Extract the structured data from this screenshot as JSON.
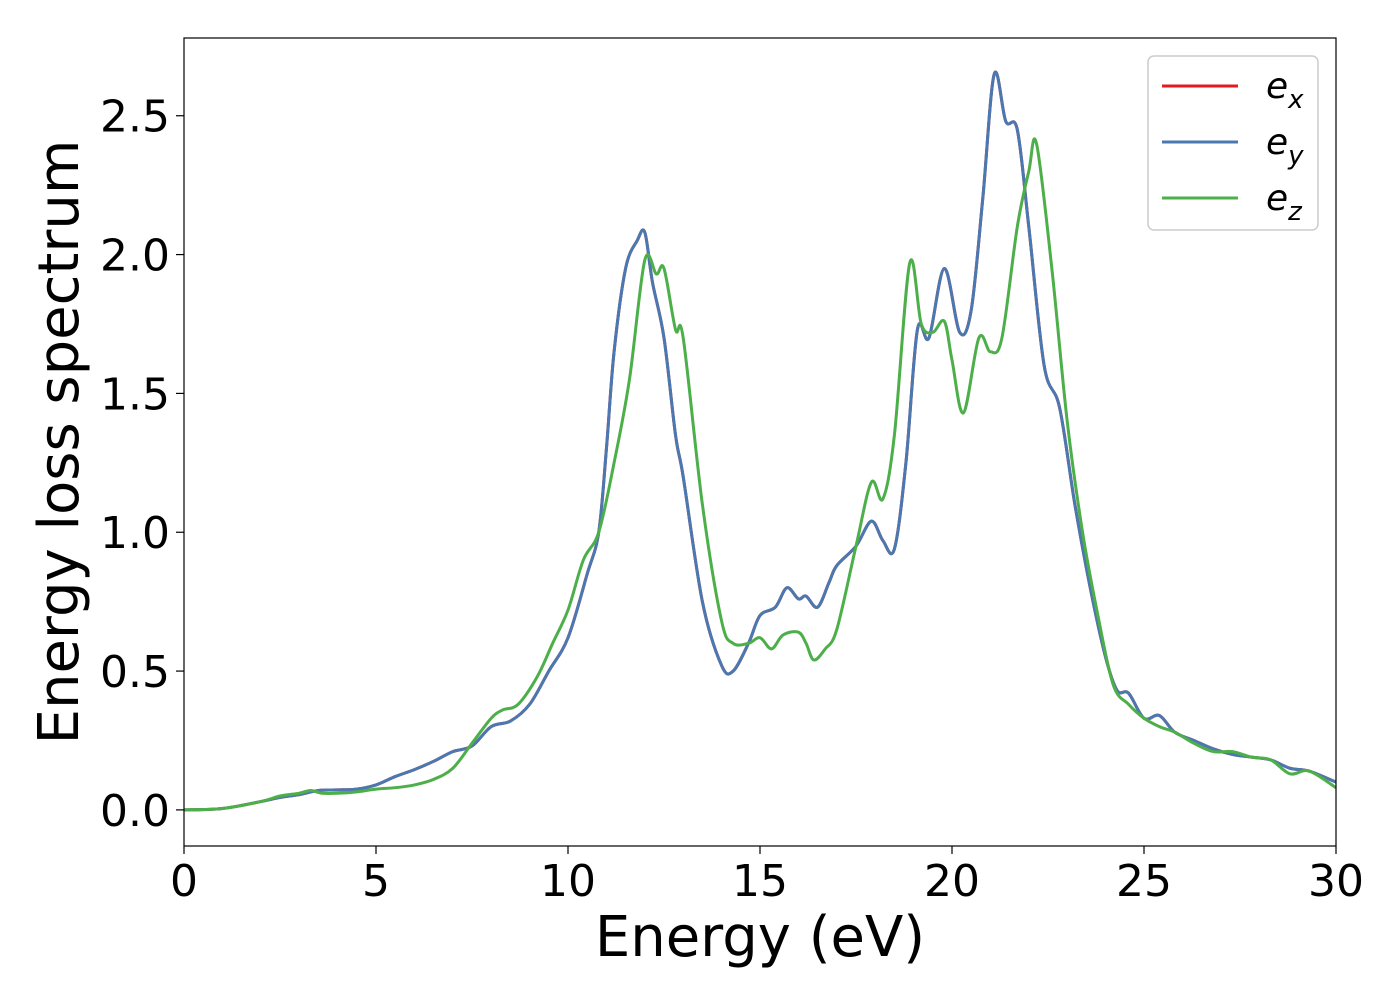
{
  "chart_data": {
    "type": "line",
    "xlabel": "Energy (eV)",
    "ylabel": "Energy loss spectrum",
    "xlim": [
      0,
      30
    ],
    "ylim": [
      -0.13,
      2.78
    ],
    "xticks": [
      0,
      5,
      10,
      15,
      20,
      25,
      30
    ],
    "yticks": [
      0.0,
      0.5,
      1.0,
      1.5,
      2.0,
      2.5
    ],
    "xtick_labels": [
      "0",
      "5",
      "10",
      "15",
      "20",
      "25",
      "30"
    ],
    "ytick_labels": [
      "0.0",
      "0.5",
      "1.0",
      "1.5",
      "2.0",
      "2.5"
    ],
    "grid": false,
    "legend": "top-right",
    "series": [
      {
        "name": "e",
        "subscript": "x",
        "color": "#e41a1c",
        "points": [
          [
            0,
            0
          ],
          [
            1,
            0.005
          ],
          [
            2,
            0.03
          ],
          [
            2.5,
            0.045
          ],
          [
            3,
            0.055
          ],
          [
            3.5,
            0.07
          ],
          [
            4,
            0.072
          ],
          [
            4.5,
            0.075
          ],
          [
            5,
            0.09
          ],
          [
            5.5,
            0.12
          ],
          [
            6,
            0.145
          ],
          [
            6.5,
            0.175
          ],
          [
            7,
            0.21
          ],
          [
            7.5,
            0.23
          ],
          [
            8,
            0.3
          ],
          [
            8.5,
            0.32
          ],
          [
            9,
            0.38
          ],
          [
            9.5,
            0.5
          ],
          [
            10,
            0.62
          ],
          [
            10.5,
            0.85
          ],
          [
            10.8,
            1.0
          ],
          [
            11,
            1.3
          ],
          [
            11.2,
            1.65
          ],
          [
            11.5,
            1.95
          ],
          [
            11.8,
            2.05
          ],
          [
            12,
            2.08
          ],
          [
            12.2,
            1.9
          ],
          [
            12.5,
            1.7
          ],
          [
            12.8,
            1.35
          ],
          [
            13,
            1.2
          ],
          [
            13.5,
            0.75
          ],
          [
            14,
            0.52
          ],
          [
            14.3,
            0.5
          ],
          [
            14.7,
            0.6
          ],
          [
            15,
            0.7
          ],
          [
            15.4,
            0.73
          ],
          [
            15.7,
            0.8
          ],
          [
            16,
            0.76
          ],
          [
            16.2,
            0.77
          ],
          [
            16.5,
            0.73
          ],
          [
            16.8,
            0.82
          ],
          [
            17,
            0.88
          ],
          [
            17.5,
            0.95
          ],
          [
            17.9,
            1.04
          ],
          [
            18.2,
            0.97
          ],
          [
            18.5,
            0.94
          ],
          [
            18.8,
            1.25
          ],
          [
            19.1,
            1.73
          ],
          [
            19.4,
            1.7
          ],
          [
            19.8,
            1.95
          ],
          [
            20.2,
            1.72
          ],
          [
            20.5,
            1.8
          ],
          [
            20.8,
            2.2
          ],
          [
            21.1,
            2.65
          ],
          [
            21.4,
            2.48
          ],
          [
            21.7,
            2.45
          ],
          [
            22,
            2.1
          ],
          [
            22.4,
            1.6
          ],
          [
            22.8,
            1.45
          ],
          [
            23.2,
            1.1
          ],
          [
            23.6,
            0.8
          ],
          [
            24,
            0.55
          ],
          [
            24.3,
            0.43
          ],
          [
            24.6,
            0.42
          ],
          [
            25,
            0.33
          ],
          [
            25.4,
            0.34
          ],
          [
            25.8,
            0.28
          ],
          [
            26.3,
            0.25
          ],
          [
            26.8,
            0.22
          ],
          [
            27.3,
            0.2
          ],
          [
            27.8,
            0.19
          ],
          [
            28.3,
            0.18
          ],
          [
            28.8,
            0.15
          ],
          [
            29.3,
            0.14
          ],
          [
            30,
            0.1
          ]
        ]
      },
      {
        "name": "e",
        "subscript": "y",
        "color": "#4a78b0",
        "points": [
          [
            0,
            0
          ],
          [
            1,
            0.005
          ],
          [
            2,
            0.03
          ],
          [
            2.5,
            0.045
          ],
          [
            3,
            0.055
          ],
          [
            3.5,
            0.07
          ],
          [
            4,
            0.072
          ],
          [
            4.5,
            0.075
          ],
          [
            5,
            0.09
          ],
          [
            5.5,
            0.12
          ],
          [
            6,
            0.145
          ],
          [
            6.5,
            0.175
          ],
          [
            7,
            0.21
          ],
          [
            7.5,
            0.23
          ],
          [
            8,
            0.3
          ],
          [
            8.5,
            0.32
          ],
          [
            9,
            0.38
          ],
          [
            9.5,
            0.5
          ],
          [
            10,
            0.62
          ],
          [
            10.5,
            0.85
          ],
          [
            10.8,
            1.0
          ],
          [
            11,
            1.3
          ],
          [
            11.2,
            1.65
          ],
          [
            11.5,
            1.95
          ],
          [
            11.8,
            2.05
          ],
          [
            12,
            2.08
          ],
          [
            12.2,
            1.9
          ],
          [
            12.5,
            1.7
          ],
          [
            12.8,
            1.35
          ],
          [
            13,
            1.2
          ],
          [
            13.5,
            0.75
          ],
          [
            14,
            0.52
          ],
          [
            14.3,
            0.5
          ],
          [
            14.7,
            0.6
          ],
          [
            15,
            0.7
          ],
          [
            15.4,
            0.73
          ],
          [
            15.7,
            0.8
          ],
          [
            16,
            0.76
          ],
          [
            16.2,
            0.77
          ],
          [
            16.5,
            0.73
          ],
          [
            16.8,
            0.82
          ],
          [
            17,
            0.88
          ],
          [
            17.5,
            0.95
          ],
          [
            17.9,
            1.04
          ],
          [
            18.2,
            0.97
          ],
          [
            18.5,
            0.94
          ],
          [
            18.8,
            1.25
          ],
          [
            19.1,
            1.73
          ],
          [
            19.4,
            1.7
          ],
          [
            19.8,
            1.95
          ],
          [
            20.2,
            1.72
          ],
          [
            20.5,
            1.8
          ],
          [
            20.8,
            2.2
          ],
          [
            21.1,
            2.65
          ],
          [
            21.4,
            2.48
          ],
          [
            21.7,
            2.45
          ],
          [
            22,
            2.1
          ],
          [
            22.4,
            1.6
          ],
          [
            22.8,
            1.45
          ],
          [
            23.2,
            1.1
          ],
          [
            23.6,
            0.8
          ],
          [
            24,
            0.55
          ],
          [
            24.3,
            0.43
          ],
          [
            24.6,
            0.42
          ],
          [
            25,
            0.33
          ],
          [
            25.4,
            0.34
          ],
          [
            25.8,
            0.28
          ],
          [
            26.3,
            0.25
          ],
          [
            26.8,
            0.22
          ],
          [
            27.3,
            0.2
          ],
          [
            27.8,
            0.19
          ],
          [
            28.3,
            0.18
          ],
          [
            28.8,
            0.15
          ],
          [
            29.3,
            0.14
          ],
          [
            30,
            0.1
          ]
        ]
      },
      {
        "name": "e",
        "subscript": "z",
        "color": "#4daf4a",
        "points": [
          [
            0,
            0
          ],
          [
            1,
            0.005
          ],
          [
            2,
            0.03
          ],
          [
            2.5,
            0.05
          ],
          [
            3,
            0.06
          ],
          [
            3.3,
            0.07
          ],
          [
            3.6,
            0.06
          ],
          [
            4,
            0.06
          ],
          [
            4.5,
            0.065
          ],
          [
            5,
            0.075
          ],
          [
            5.5,
            0.08
          ],
          [
            6,
            0.09
          ],
          [
            6.5,
            0.11
          ],
          [
            7,
            0.15
          ],
          [
            7.5,
            0.24
          ],
          [
            8,
            0.33
          ],
          [
            8.3,
            0.36
          ],
          [
            8.7,
            0.38
          ],
          [
            9.2,
            0.48
          ],
          [
            9.6,
            0.6
          ],
          [
            10,
            0.72
          ],
          [
            10.4,
            0.9
          ],
          [
            10.8,
            1.0
          ],
          [
            11.2,
            1.25
          ],
          [
            11.6,
            1.55
          ],
          [
            12,
            1.98
          ],
          [
            12.3,
            1.93
          ],
          [
            12.5,
            1.95
          ],
          [
            12.8,
            1.73
          ],
          [
            13,
            1.7
          ],
          [
            13.5,
            1.1
          ],
          [
            14,
            0.68
          ],
          [
            14.3,
            0.6
          ],
          [
            14.7,
            0.6
          ],
          [
            15,
            0.62
          ],
          [
            15.3,
            0.58
          ],
          [
            15.6,
            0.63
          ],
          [
            16,
            0.64
          ],
          [
            16.2,
            0.6
          ],
          [
            16.4,
            0.54
          ],
          [
            16.7,
            0.58
          ],
          [
            17,
            0.65
          ],
          [
            17.5,
            0.95
          ],
          [
            17.9,
            1.18
          ],
          [
            18.2,
            1.12
          ],
          [
            18.5,
            1.35
          ],
          [
            18.9,
            1.97
          ],
          [
            19.2,
            1.75
          ],
          [
            19.5,
            1.72
          ],
          [
            19.8,
            1.76
          ],
          [
            20,
            1.62
          ],
          [
            20.3,
            1.43
          ],
          [
            20.7,
            1.7
          ],
          [
            21,
            1.65
          ],
          [
            21.3,
            1.7
          ],
          [
            21.7,
            2.1
          ],
          [
            22,
            2.3
          ],
          [
            22.2,
            2.4
          ],
          [
            22.6,
            1.95
          ],
          [
            23,
            1.4
          ],
          [
            23.4,
            1.0
          ],
          [
            23.8,
            0.7
          ],
          [
            24.2,
            0.45
          ],
          [
            24.6,
            0.38
          ],
          [
            25,
            0.33
          ],
          [
            25.4,
            0.3
          ],
          [
            25.8,
            0.28
          ],
          [
            26.3,
            0.24
          ],
          [
            26.8,
            0.21
          ],
          [
            27.3,
            0.21
          ],
          [
            27.8,
            0.19
          ],
          [
            28.3,
            0.18
          ],
          [
            28.8,
            0.13
          ],
          [
            29.3,
            0.14
          ],
          [
            30,
            0.08
          ]
        ]
      }
    ]
  }
}
